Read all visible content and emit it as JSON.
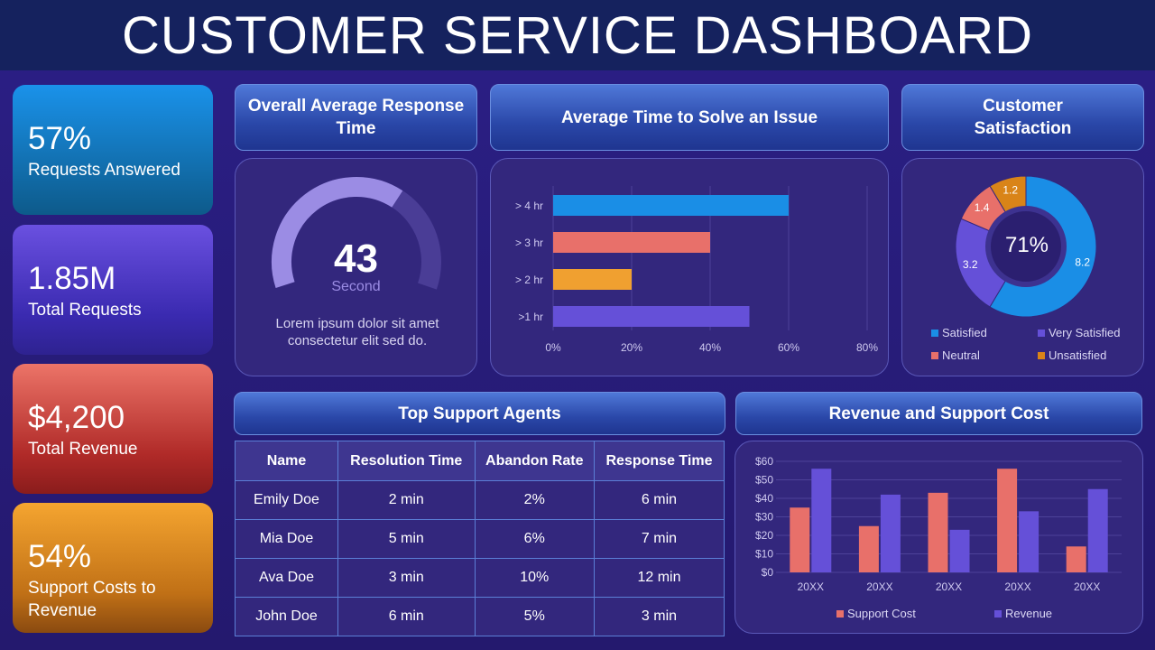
{
  "header": {
    "title": "CUSTOMER SERVICE DASHBOARD"
  },
  "kpis": [
    {
      "value": "57%",
      "label": "Requests Answered",
      "color": "#1a8ee6"
    },
    {
      "value": "1.85M",
      "label": "Total Requests",
      "color": "#5b45d8"
    },
    {
      "value": "$4,200",
      "label": "Total Revenue",
      "color": "#e8685e"
    },
    {
      "value": "54%",
      "label": "Support Costs to Revenue",
      "color": "#f0a030"
    }
  ],
  "response": {
    "title": "Overall Average Response Time",
    "value": "43",
    "unit": "Second",
    "gauge_fill": 0.65,
    "description": "Lorem ipsum dolor sit amet consectetur  elit sed do."
  },
  "solve": {
    "title": "Average Time to Solve an Issue"
  },
  "satisfaction": {
    "title": "Customer Satisfaction",
    "center": "71%"
  },
  "agents": {
    "title": "Top Support Agents",
    "columns": [
      "Name",
      "Resolution Time",
      "Abandon Rate",
      "Response Time"
    ],
    "rows": [
      [
        "Emily Doe",
        "2 min",
        "2%",
        "6 min"
      ],
      [
        "Mia Doe",
        "5 min",
        "6%",
        "7 min"
      ],
      [
        "Ava Doe",
        "3 min",
        "10%",
        "12 min"
      ],
      [
        "John Doe",
        "6 min",
        "5%",
        "3 min"
      ]
    ]
  },
  "revenue": {
    "title": "Revenue and Support Cost"
  },
  "chart_data": [
    {
      "type": "bar",
      "orientation": "horizontal",
      "categories": [
        "> 4 hr",
        "> 3 hr",
        "> 2 hr",
        ">1 hr"
      ],
      "values": [
        60,
        40,
        20,
        50
      ],
      "colors": [
        "#1a8ee6",
        "#e8706a",
        "#f0a030",
        "#6550d8"
      ],
      "xlim": [
        0,
        80
      ],
      "xticks": [
        "0%",
        "20%",
        "40%",
        "60%",
        "80%"
      ],
      "grid": true
    },
    {
      "type": "pie",
      "donut": true,
      "labels": [
        "Satisfied",
        "Very Satisfied",
        "Neutral",
        "Unsatisfied"
      ],
      "values": [
        8.2,
        3.2,
        1.4,
        1.2
      ],
      "colors": [
        "#1a8ee6",
        "#6550d8",
        "#e8706a",
        "#d98418"
      ],
      "legend": "bottom"
    },
    {
      "type": "bar",
      "categories": [
        "20XX",
        "20XX",
        "20XX",
        "20XX",
        "20XX"
      ],
      "series": [
        {
          "name": "Support Cost",
          "values": [
            35,
            25,
            43,
            56,
            14
          ],
          "color": "#e8706a"
        },
        {
          "name": "Revenue",
          "values": [
            56,
            42,
            23,
            33,
            45
          ],
          "color": "#6550d8"
        }
      ],
      "ylim": [
        0,
        60
      ],
      "yticks": [
        "$0",
        "$10",
        "$20",
        "$30",
        "$40",
        "$50",
        "$60"
      ],
      "grid": true,
      "legend": "bottom"
    }
  ]
}
